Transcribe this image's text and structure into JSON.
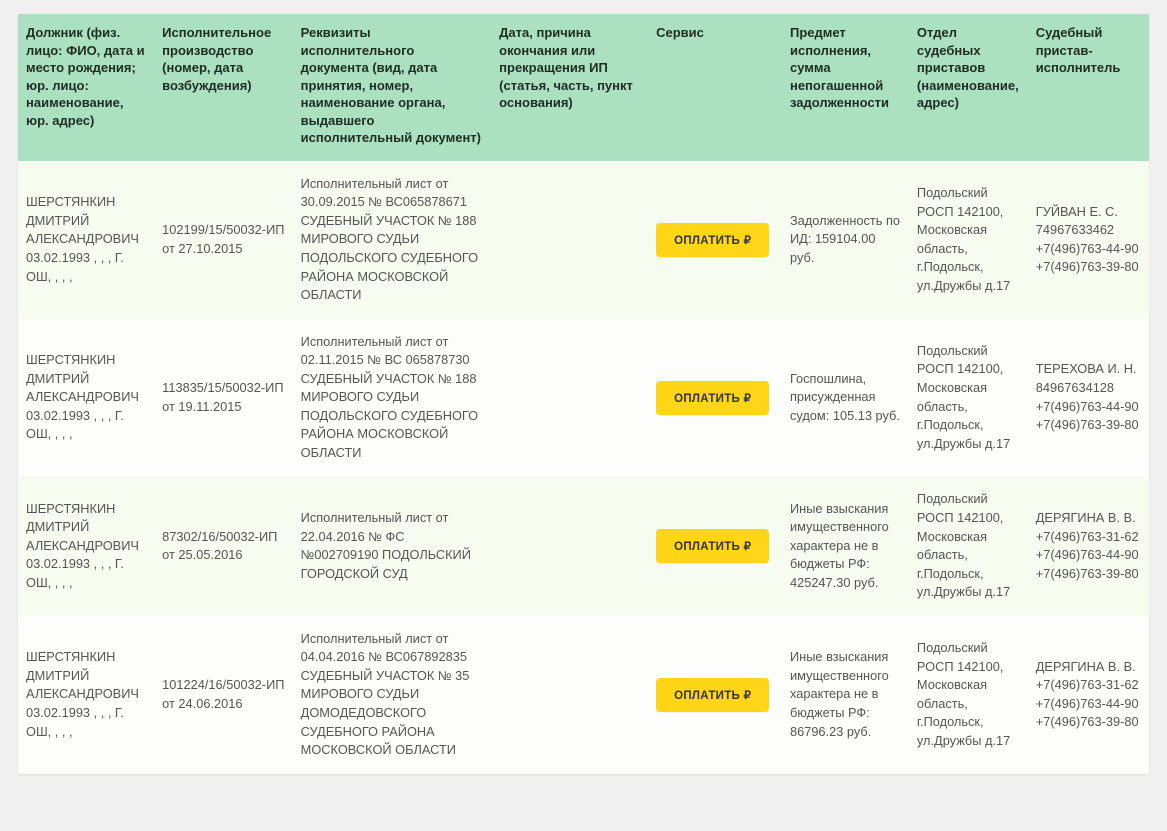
{
  "buttons": {
    "pay_label": "ОПЛАТИТЬ"
  },
  "columns": [
    "Должник (физ. лицо: ФИО, дата и место рождения; юр. лицо: наименование, юр. адрес)",
    "Исполнительное производство (номер, дата возбуждения)",
    "Реквизиты исполнительного документа (вид, дата принятия, номер, наименование органа, выдавшего исполнительный документ)",
    "Дата, причина окончания или прекращения ИП (статья, часть, пункт основания)",
    "Сервис",
    "Предмет исполнения, сумма непогашенной задолженности",
    "Отдел судебных приставов (наименование, адрес)",
    "Судебный пристав-исполнитель"
  ],
  "rows": [
    {
      "debtor": "ШЕРСТЯНКИН ДМИТРИЙ АЛЕКСАНДРОВИЧ 03.02.1993\n, , , Г. ОШ, , , ,",
      "proc": "102199/15/50032-ИП от 27.10.2015",
      "doc": "Исполнительный лист от 30.09.2015 № ВС065878671 СУДЕБНЫЙ УЧАСТОК № 188 МИРОВОГО СУДЬИ ПОДОЛЬСКОГО СУДЕБНОГО РАЙОНА МОСКОВСКОЙ ОБЛАСТИ",
      "reason": "",
      "subject": "Задолженность по ИД: 159104.00 руб.",
      "dept": "Подольский РОСП 142100, Московская область, г.Подольск, ул.Дружбы д.17",
      "officer": "ГУЙВАН Е. С. 74967633462 +7(496)763-44-90 +7(496)763-39-80"
    },
    {
      "debtor": "ШЕРСТЯНКИН ДМИТРИЙ АЛЕКСАНДРОВИЧ 03.02.1993\n, , , Г. ОШ, , , ,",
      "proc": "113835/15/50032-ИП от 19.11.2015",
      "doc": "Исполнительный лист от 02.11.2015 № ВС 065878730 СУДЕБНЫЙ УЧАСТОК № 188 МИРОВОГО СУДЬИ ПОДОЛЬСКОГО СУДЕБНОГО РАЙОНА МОСКОВСКОЙ ОБЛАСТИ",
      "reason": "",
      "subject": "Госпошлина, присужденная судом: 105.13 руб.",
      "dept": "Подольский РОСП 142100, Московская область, г.Подольск, ул.Дружбы д.17",
      "officer": "ТЕРЕХОВА И. Н. 84967634128 +7(496)763-44-90 +7(496)763-39-80"
    },
    {
      "debtor": "ШЕРСТЯНКИН ДМИТРИЙ АЛЕКСАНДРОВИЧ 03.02.1993\n, , , Г. ОШ, , , ,",
      "proc": "87302/16/50032-ИП от 25.05.2016",
      "doc": "Исполнительный лист от 22.04.2016 № ФС №002709190 ПОДОЛЬСКИЙ ГОРОДСКОЙ СУД",
      "reason": "",
      "subject": "Иные взыскания имущественного характера не в бюджеты РФ: 425247.30 руб.",
      "dept": "Подольский РОСП 142100, Московская область, г.Подольск, ул.Дружбы д.17",
      "officer": "ДЕРЯГИНА В. В. +7(496)763-31-62 +7(496)763-44-90 +7(496)763-39-80"
    },
    {
      "debtor": "ШЕРСТЯНКИН ДМИТРИЙ АЛЕКСАНДРОВИЧ 03.02.1993\n, , , Г. ОШ, , , ,",
      "proc": "101224/16/50032-ИП от 24.06.2016",
      "doc": "Исполнительный лист от 04.04.2016 № ВС067892835 СУДЕБНЫЙ УЧАСТОК № 35 МИРОВОГО СУДЬИ ДОМОДЕДОВСКОГО СУДЕБНОГО РАЙОНА МОСКОВСКОЙ ОБЛАСТИ",
      "reason": "",
      "subject": "Иные взыскания имущественного характера не в бюджеты РФ: 86796.23 руб.",
      "dept": "Подольский РОСП 142100, Московская область, г.Подольск, ул.Дружбы д.17",
      "officer": "ДЕРЯГИНА В. В. +7(496)763-31-62 +7(496)763-44-90 +7(496)763-39-80"
    }
  ],
  "style": {
    "header_bg": "#abe0c1",
    "row_odd_bg": "#f6fcf0",
    "row_even_bg": "#fdfdfb",
    "btn_bg": "#ffd617",
    "btn_text": "#333333",
    "header_text": "#1f2d23",
    "cell_text": "#555555"
  }
}
